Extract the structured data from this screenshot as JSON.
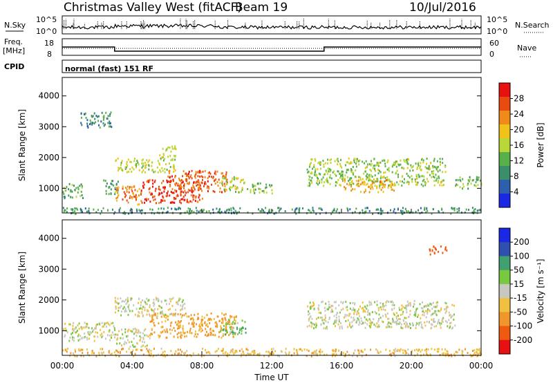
{
  "header": {
    "title": "Christmas Valley West (fitACF)",
    "beam": "Beam 19",
    "date": "10/Jul/2016",
    "cpid_label": "CPID",
    "cpid_value": "normal (fast) 151 RF",
    "nsky_label": "N.Sky",
    "nsearch_label": "N.Search",
    "freq_label_1": "Freq.",
    "freq_label_2": "[MHz]",
    "nave_label": "Nave",
    "nsky_ticks": [
      "10^5",
      "10^0"
    ],
    "nsearch_ticks": [
      "10^5",
      "10^0"
    ],
    "freq_ticks": [
      "18",
      "8"
    ],
    "nave_ticks": [
      "60",
      "0"
    ]
  },
  "colors": {
    "power_scale": [
      "#1a28e6",
      "#2e5faf",
      "#3a8f6a",
      "#58b04a",
      "#b8d838",
      "#f0c21a",
      "#f08a18",
      "#e84a10",
      "#e81010"
    ],
    "velocity_scale": [
      "#e81010",
      "#f05a10",
      "#f0962a",
      "#f0c040",
      "#c8c8c0",
      "#78c840",
      "#40a070",
      "#3050b0",
      "#1a28e6"
    ]
  },
  "chart_data": [
    {
      "type": "line",
      "name": "noise-search-panel",
      "x_range": [
        0,
        24
      ],
      "freq_segments": [
        {
          "x": [
            0,
            3
          ],
          "y": 13
        },
        {
          "x": [
            3,
            15
          ],
          "y": 10.5
        },
        {
          "x": [
            15,
            24
          ],
          "y": 13
        }
      ]
    },
    {
      "type": "heatmap",
      "name": "power-panel",
      "xlabel": "Time UT",
      "ylabel": "Slant Range [km]",
      "xlim": [
        0,
        24
      ],
      "ylim": [
        200,
        4600
      ],
      "x_ticks": [
        "00:00",
        "04:00",
        "08:00",
        "12:00",
        "16:00",
        "20:00",
        "00:00"
      ],
      "x_tick_values": [
        0,
        4,
        8,
        12,
        16,
        20,
        24
      ],
      "y_ticks": [
        "1000",
        "2000",
        "3000",
        "4000"
      ],
      "y_tick_values": [
        1000,
        2000,
        3000,
        4000
      ],
      "colorbar_label": "Power [dB]",
      "colorbar_ticks": [
        "4",
        "8",
        "12",
        "16",
        "20",
        "24",
        "28"
      ],
      "colorbar_range": [
        0,
        30
      ],
      "regions": [
        {
          "t": [
            0.0,
            1.2
          ],
          "r": [
            700,
            1200
          ],
          "v": 11
        },
        {
          "t": [
            2.3,
            3.2
          ],
          "r": [
            800,
            1300
          ],
          "v": 10
        },
        {
          "t": [
            3.0,
            4.5
          ],
          "r": [
            500,
            1100
          ],
          "v": 22
        },
        {
          "t": [
            4.5,
            8.0
          ],
          "r": [
            550,
            1300
          ],
          "v": 26
        },
        {
          "t": [
            6.0,
            9.5
          ],
          "r": [
            900,
            1600
          ],
          "v": 24
        },
        {
          "t": [
            9.0,
            10.5
          ],
          "r": [
            900,
            1400
          ],
          "v": 16
        },
        {
          "t": [
            10.5,
            12.0
          ],
          "r": [
            850,
            1200
          ],
          "v": 12
        },
        {
          "t": [
            3.0,
            6.5
          ],
          "r": [
            1550,
            2000
          ],
          "v": 16
        },
        {
          "t": [
            5.5,
            6.5
          ],
          "r": [
            2000,
            2400
          ],
          "v": 15
        },
        {
          "t": [
            1.0,
            2.8
          ],
          "r": [
            3000,
            3500
          ],
          "v": 9
        },
        {
          "t": [
            14.0,
            22.0
          ],
          "r": [
            1100,
            2000
          ],
          "v": 14
        },
        {
          "t": [
            16.0,
            19.0
          ],
          "r": [
            900,
            1300
          ],
          "v": 20
        },
        {
          "t": [
            22.5,
            24.0
          ],
          "r": [
            1000,
            1400
          ],
          "v": 12
        },
        {
          "t": [
            0.0,
            24.0
          ],
          "r": [
            200,
            400
          ],
          "v": 9
        }
      ]
    },
    {
      "type": "heatmap",
      "name": "velocity-panel",
      "xlabel": "Time UT",
      "ylabel": "Slant Range [km]",
      "xlim": [
        0,
        24
      ],
      "ylim": [
        200,
        4600
      ],
      "x_ticks": [
        "00:00",
        "04:00",
        "08:00",
        "12:00",
        "16:00",
        "20:00",
        "00:00"
      ],
      "x_tick_values": [
        0,
        4,
        8,
        12,
        16,
        20,
        24
      ],
      "y_ticks": [
        "1000",
        "2000",
        "3000",
        "4000"
      ],
      "y_tick_values": [
        1000,
        2000,
        3000,
        4000
      ],
      "colorbar_label": "Velocity [m s⁻¹]",
      "colorbar_ticks": [
        "-200",
        "-100",
        "-50",
        "-15",
        "15",
        "50",
        "100",
        "200"
      ],
      "regions": [
        {
          "t": [
            0.0,
            3.0
          ],
          "r": [
            700,
            1300
          ],
          "v": 0
        },
        {
          "t": [
            3.0,
            5.0
          ],
          "r": [
            500,
            1100
          ],
          "v": 0
        },
        {
          "t": [
            5.0,
            10.0
          ],
          "r": [
            800,
            1600
          ],
          "v": -60
        },
        {
          "t": [
            9.0,
            10.5
          ],
          "r": [
            900,
            1400
          ],
          "v": 40
        },
        {
          "t": [
            3.0,
            7.0
          ],
          "r": [
            1500,
            2100
          ],
          "v": 0
        },
        {
          "t": [
            14.0,
            22.5
          ],
          "r": [
            1100,
            2000
          ],
          "v": 0
        },
        {
          "t": [
            0.0,
            24.0
          ],
          "r": [
            200,
            450
          ],
          "v": -40
        },
        {
          "t": [
            21.0,
            22.0
          ],
          "r": [
            3500,
            3800
          ],
          "v": -150
        }
      ]
    }
  ]
}
